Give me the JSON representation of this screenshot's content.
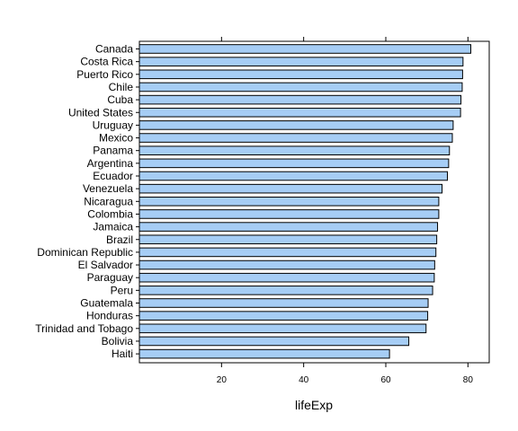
{
  "chart_data": {
    "type": "bar",
    "orientation": "horizontal",
    "xlabel": "lifeExp",
    "ylabel": "",
    "xlim": [
      0,
      85
    ],
    "xticks": [
      20,
      40,
      60,
      80
    ],
    "grid": false,
    "bar_color": "#a6cdf5",
    "categories": [
      "Canada",
      "Costa Rica",
      "Puerto Rico",
      "Chile",
      "Cuba",
      "United States",
      "Uruguay",
      "Mexico",
      "Panama",
      "Argentina",
      "Ecuador",
      "Venezuela",
      "Nicaragua",
      "Colombia",
      "Jamaica",
      "Brazil",
      "Dominican Republic",
      "El Salvador",
      "Paraguay",
      "Peru",
      "Guatemala",
      "Honduras",
      "Trinidad and Tobago",
      "Bolivia",
      "Haiti"
    ],
    "values": [
      80.7,
      78.8,
      78.7,
      78.6,
      78.3,
      78.2,
      76.4,
      76.2,
      75.5,
      75.3,
      75.0,
      73.7,
      72.9,
      72.9,
      72.6,
      72.4,
      72.2,
      71.9,
      71.8,
      71.4,
      70.3,
      70.2,
      69.8,
      65.6,
      60.9
    ]
  }
}
